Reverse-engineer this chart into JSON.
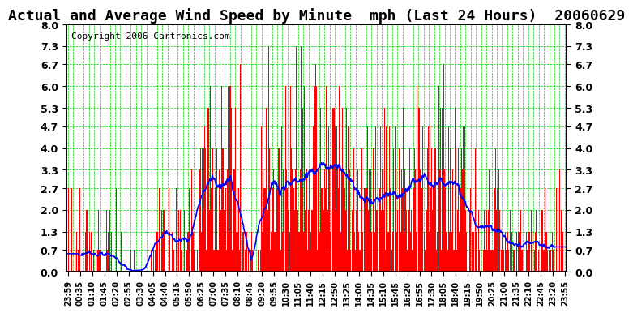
{
  "title": "Actual and Average Wind Speed by Minute  mph (Last 24 Hours)  20060629",
  "copyright": "Copyright 2006 Cartronics.com",
  "y_ticks": [
    0.0,
    0.7,
    1.3,
    2.0,
    2.7,
    3.3,
    4.0,
    4.7,
    5.3,
    6.0,
    6.7,
    7.3,
    8.0
  ],
  "ylim": [
    0.0,
    8.0
  ],
  "bar_color": "#ff0000",
  "line_color": "#0000ff",
  "grid_color": "#00cc00",
  "bg_color": "#ffffff",
  "title_fontsize": 13,
  "copyright_fontsize": 8,
  "x_label_fontsize": 7,
  "y_label_fontsize": 9,
  "x_tick_labels": [
    "23:59",
    "00:35",
    "01:10",
    "01:45",
    "02:20",
    "02:55",
    "03:30",
    "04:05",
    "04:40",
    "05:15",
    "05:50",
    "06:25",
    "07:00",
    "07:35",
    "08:10",
    "08:45",
    "09:20",
    "09:55",
    "10:30",
    "11:05",
    "11:40",
    "12:15",
    "12:50",
    "13:25",
    "14:00",
    "14:35",
    "15:10",
    "15:45",
    "16:20",
    "16:55",
    "17:30",
    "18:05",
    "18:40",
    "19:15",
    "19:50",
    "20:25",
    "21:00",
    "21:35",
    "22:10",
    "22:45",
    "23:20",
    "23:55"
  ]
}
